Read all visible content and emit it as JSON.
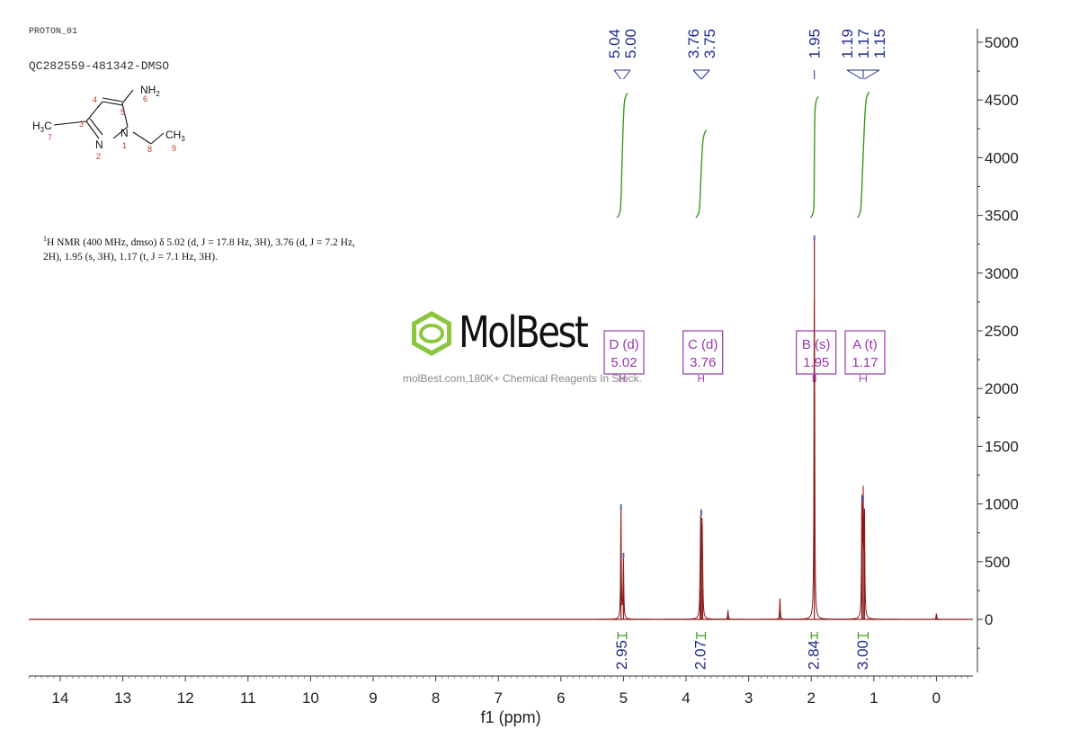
{
  "header": {
    "experiment": "PROTON_01",
    "sample_id": "QC282559-481342-DMSO"
  },
  "structure": {
    "atoms": [
      {
        "label": "NH2",
        "number": "6"
      },
      {
        "label": "H3C",
        "number": "7"
      },
      {
        "label": "N",
        "number": "1"
      },
      {
        "label": "N",
        "number": "2"
      },
      {
        "label": "CH3",
        "number": "9"
      },
      {
        "label": "",
        "number": "3"
      },
      {
        "label": "",
        "number": "4"
      },
      {
        "label": "",
        "number": "5"
      },
      {
        "label": "",
        "number": "8"
      }
    ]
  },
  "nmr_description": {
    "line1": "H NMR (400 MHz, dmso) δ 5.02 (d, J = 17.8 Hz, 3H), 3.76 (d, J = 7.2 Hz,",
    "line2": "2H), 1.95 (s, 3H), 1.17 (t, J = 7.1 Hz, 3H).",
    "superscript": "1"
  },
  "watermark": {
    "brand": "MolBest",
    "tagline": "molBest.com,180K+ Chemical Reagents In Stock."
  },
  "colors": {
    "spectrum": "#8b1a1a",
    "integral": "#3a9a1a",
    "peak_label": "#1f2d8a",
    "multiplet_box": "#9b35b0",
    "logo_green": "#8cc63f"
  },
  "chart_data": {
    "type": "line",
    "xlabel": "f1 (ppm)",
    "x_reversed": true,
    "xlim": [
      14.5,
      -0.5
    ],
    "ylim": [
      -500,
      5100
    ],
    "x_ticks": [
      14,
      13,
      12,
      11,
      10,
      9,
      8,
      7,
      6,
      5,
      4,
      3,
      2,
      1,
      0
    ],
    "y_ticks": [
      0,
      500,
      1000,
      1500,
      2000,
      2500,
      3000,
      3500,
      4000,
      4500,
      5000
    ],
    "peaks": [
      {
        "ppm": 5.04,
        "height": 950
      },
      {
        "ppm": 5.0,
        "height": 530
      },
      {
        "ppm": 3.765,
        "height": 900
      },
      {
        "ppm": 3.745,
        "height": 880
      },
      {
        "ppm": 3.735,
        "height": 260
      },
      {
        "ppm": 3.775,
        "height": 250
      },
      {
        "ppm": 3.33,
        "height": 80
      },
      {
        "ppm": 2.5,
        "height": 180
      },
      {
        "ppm": 1.95,
        "height": 3280
      },
      {
        "ppm": 1.19,
        "height": 1020
      },
      {
        "ppm": 1.17,
        "height": 1000
      },
      {
        "ppm": 1.15,
        "height": 960
      },
      {
        "ppm": 0.0,
        "height": 50
      }
    ],
    "peak_labels": [
      {
        "group": [
          "5.04",
          "5.00"
        ],
        "ppm": [
          5.04,
          5.0
        ]
      },
      {
        "group": [
          "3.76",
          "3.75"
        ],
        "ppm": [
          3.76,
          3.75
        ]
      },
      {
        "group": [
          "1.95"
        ],
        "ppm": [
          1.95
        ]
      },
      {
        "group": [
          "1.19",
          "1.17",
          "1.15"
        ],
        "ppm": [
          1.19,
          1.17,
          1.15
        ]
      }
    ],
    "multiplets": [
      {
        "name": "D (d)",
        "shift": "5.02",
        "ppm": 5.02,
        "from": 5.06,
        "to": 4.98
      },
      {
        "name": "C (d)",
        "shift": "3.76",
        "ppm": 3.76,
        "from": 3.8,
        "to": 3.72
      },
      {
        "name": "B (s)",
        "shift": "1.95",
        "ppm": 1.95,
        "from": 1.97,
        "to": 1.93
      },
      {
        "name": "A (t)",
        "shift": "1.17",
        "ppm": 1.17,
        "from": 1.22,
        "to": 1.12
      }
    ],
    "integrals": [
      {
        "value": "2.95",
        "from": 5.06,
        "to": 4.98,
        "top": 4560,
        "bottom": 3480
      },
      {
        "value": "2.07",
        "from": 3.8,
        "to": 3.72,
        "top": 4240,
        "bottom": 3480
      },
      {
        "value": "2.84",
        "from": 1.97,
        "to": 1.93,
        "top": 4530,
        "bottom": 3480
      },
      {
        "value": "3.00",
        "from": 1.22,
        "to": 1.12,
        "top": 4570,
        "bottom": 3480
      }
    ]
  }
}
